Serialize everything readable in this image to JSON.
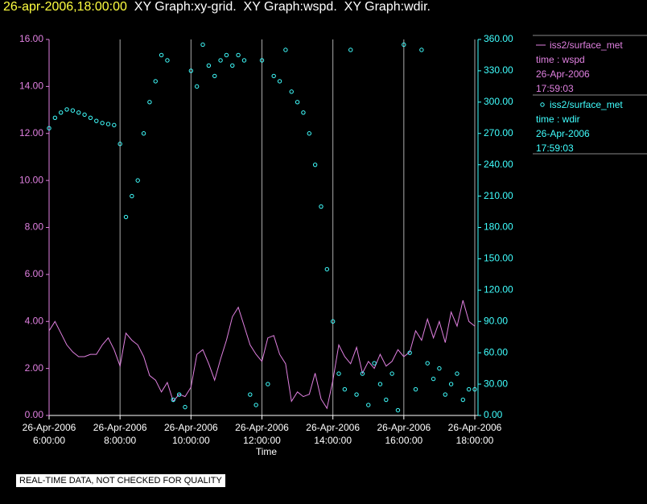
{
  "chart_data": {
    "type": "line-scatter",
    "title_time": "26-apr-2006,18:00:00",
    "title": "XY Graph:xy-grid.  XY Graph:wspd.  XY Graph:wdir.",
    "xlabel": "Time",
    "note": "REAL-TIME DATA, NOT CHECKED FOR QUALITY",
    "x": [
      6,
      6.1667,
      6.3333,
      6.5,
      6.6667,
      6.8333,
      7,
      7.1667,
      7.3333,
      7.5,
      7.6667,
      7.8333,
      8,
      8.1667,
      8.3333,
      8.5,
      8.6667,
      8.8333,
      9,
      9.1667,
      9.3333,
      9.5,
      9.6667,
      9.8333,
      10,
      10.1667,
      10.3333,
      10.5,
      10.6667,
      10.8333,
      11,
      11.1667,
      11.3333,
      11.5,
      11.6667,
      11.8333,
      12,
      12.1667,
      12.3333,
      12.5,
      12.6667,
      12.8333,
      13,
      13.1667,
      13.3333,
      13.5,
      13.6667,
      13.8333,
      14,
      14.1667,
      14.3333,
      14.5,
      14.6667,
      14.8333,
      15,
      15.1667,
      15.3333,
      15.5,
      15.6667,
      15.8333,
      16,
      16.1667,
      16.3333,
      16.5,
      16.6667,
      16.8333,
      17,
      17.1667,
      17.3333,
      17.5,
      17.6667,
      17.8333,
      18
    ],
    "series": [
      {
        "name": "iss2/surface_met",
        "label_lines": [
          "time : wspd",
          "26-Apr-2006",
          "17:59:03"
        ],
        "color": "#e080e0",
        "kind": "line",
        "values": [
          3.6,
          4.0,
          3.5,
          3.0,
          2.7,
          2.5,
          2.5,
          2.6,
          2.6,
          3.0,
          3.3,
          2.8,
          2.1,
          3.5,
          3.2,
          3.0,
          2.5,
          1.7,
          1.5,
          1.0,
          1.4,
          0.6,
          0.9,
          0.8,
          1.2,
          2.6,
          2.8,
          2.2,
          1.5,
          2.4,
          3.2,
          4.2,
          4.6,
          3.8,
          3.0,
          2.6,
          2.3,
          3.3,
          3.4,
          2.6,
          2.2,
          0.6,
          1.0,
          0.8,
          0.9,
          1.8,
          0.7,
          0.3,
          1.5,
          3.0,
          2.5,
          2.2,
          2.9,
          1.8,
          2.3,
          2.0,
          2.6,
          2.1,
          2.3,
          2.8,
          2.5,
          2.7,
          3.6,
          3.2,
          4.1,
          3.3,
          4.0,
          3.1,
          4.4,
          3.8,
          4.9,
          4.0,
          3.8
        ]
      },
      {
        "name": "iss2/surface_met",
        "label_lines": [
          "time : wdir",
          "26-Apr-2006",
          "17:59:03"
        ],
        "color": "#40ffff",
        "kind": "scatter",
        "axis": "y2",
        "values": [
          275,
          285,
          290,
          293,
          292,
          290,
          288,
          285,
          282,
          280,
          279,
          278,
          260,
          190,
          210,
          225,
          270,
          300,
          320,
          345,
          340,
          15,
          20,
          8,
          330,
          315,
          355,
          335,
          325,
          340,
          345,
          335,
          345,
          340,
          20,
          10,
          340,
          30,
          325,
          320,
          350,
          310,
          300,
          290,
          270,
          240,
          200,
          140,
          90,
          40,
          25,
          350,
          20,
          40,
          10,
          50,
          30,
          15,
          40,
          5,
          355,
          60,
          25,
          350,
          50,
          35,
          45,
          20,
          30,
          40,
          15,
          25,
          25
        ]
      }
    ],
    "xlim": [
      6,
      18
    ],
    "xticks": [
      {
        "value": 6,
        "label": "26-Apr-2006\n6:00:00"
      },
      {
        "value": 8,
        "label": "26-Apr-2006\n8:00:00"
      },
      {
        "value": 10,
        "label": "26-Apr-2006\n10:00:00"
      },
      {
        "value": 12,
        "label": "26-Apr-2006\n12:00:00"
      },
      {
        "value": 14,
        "label": "26-Apr-2006\n14:00:00"
      },
      {
        "value": 16,
        "label": "26-Apr-2006\n16:00:00"
      },
      {
        "value": 18,
        "label": "26-Apr-2006\n18:00:00"
      }
    ],
    "ylim": [
      0,
      16
    ],
    "yticks": [
      {
        "value": 0,
        "label": "0.00"
      },
      {
        "value": 2,
        "label": "2.00"
      },
      {
        "value": 4,
        "label": "4.00"
      },
      {
        "value": 6,
        "label": "6.00"
      },
      {
        "value": 8,
        "label": "8.00"
      },
      {
        "value": 10,
        "label": "10.00"
      },
      {
        "value": 12,
        "label": "12.00"
      },
      {
        "value": 14,
        "label": "14.00"
      },
      {
        "value": 16,
        "label": "16.00"
      }
    ],
    "y2lim": [
      0,
      360
    ],
    "y2ticks": [
      {
        "value": 0,
        "label": "0.00"
      },
      {
        "value": 30,
        "label": "30.00"
      },
      {
        "value": 60,
        "label": "60.00"
      },
      {
        "value": 90,
        "label": "90.00"
      },
      {
        "value": 120,
        "label": "120.00"
      },
      {
        "value": 150,
        "label": "150.00"
      },
      {
        "value": 180,
        "label": "180.00"
      },
      {
        "value": 210,
        "label": "210.00"
      },
      {
        "value": 240,
        "label": "240.00"
      },
      {
        "value": 270,
        "label": "270.00"
      },
      {
        "value": 300,
        "label": "300.00"
      },
      {
        "value": 330,
        "label": "330.00"
      },
      {
        "value": 360,
        "label": "360.00"
      }
    ],
    "grid": true
  }
}
